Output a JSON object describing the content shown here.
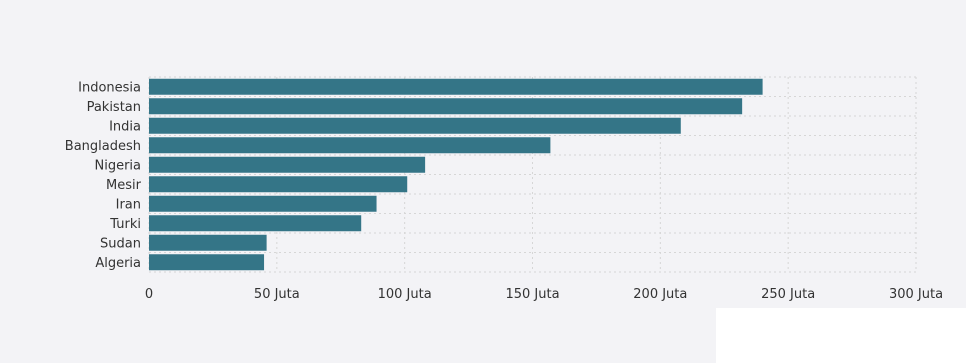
{
  "colors": {
    "bar": "#347587",
    "grid": "#d6d6d6",
    "background": "#f3f3f6",
    "text": "#333333"
  },
  "chart_data": {
    "type": "bar",
    "orientation": "horizontal",
    "categories": [
      "Indonesia",
      "Pakistan",
      "India",
      "Bangladesh",
      "Nigeria",
      "Mesir",
      "Iran",
      "Turki",
      "Sudan",
      "Algeria"
    ],
    "values": [
      240,
      232,
      208,
      157,
      108,
      101,
      89,
      83,
      46,
      45
    ],
    "xlim": [
      0,
      300
    ],
    "ticks": [
      0,
      50,
      100,
      150,
      200,
      250,
      300
    ],
    "tick_labels": [
      "0",
      "50 Juta",
      "100 Juta",
      "150 Juta",
      "200 Juta",
      "250 Juta",
      "300 Juta"
    ],
    "grid": true,
    "legend": "none"
  }
}
